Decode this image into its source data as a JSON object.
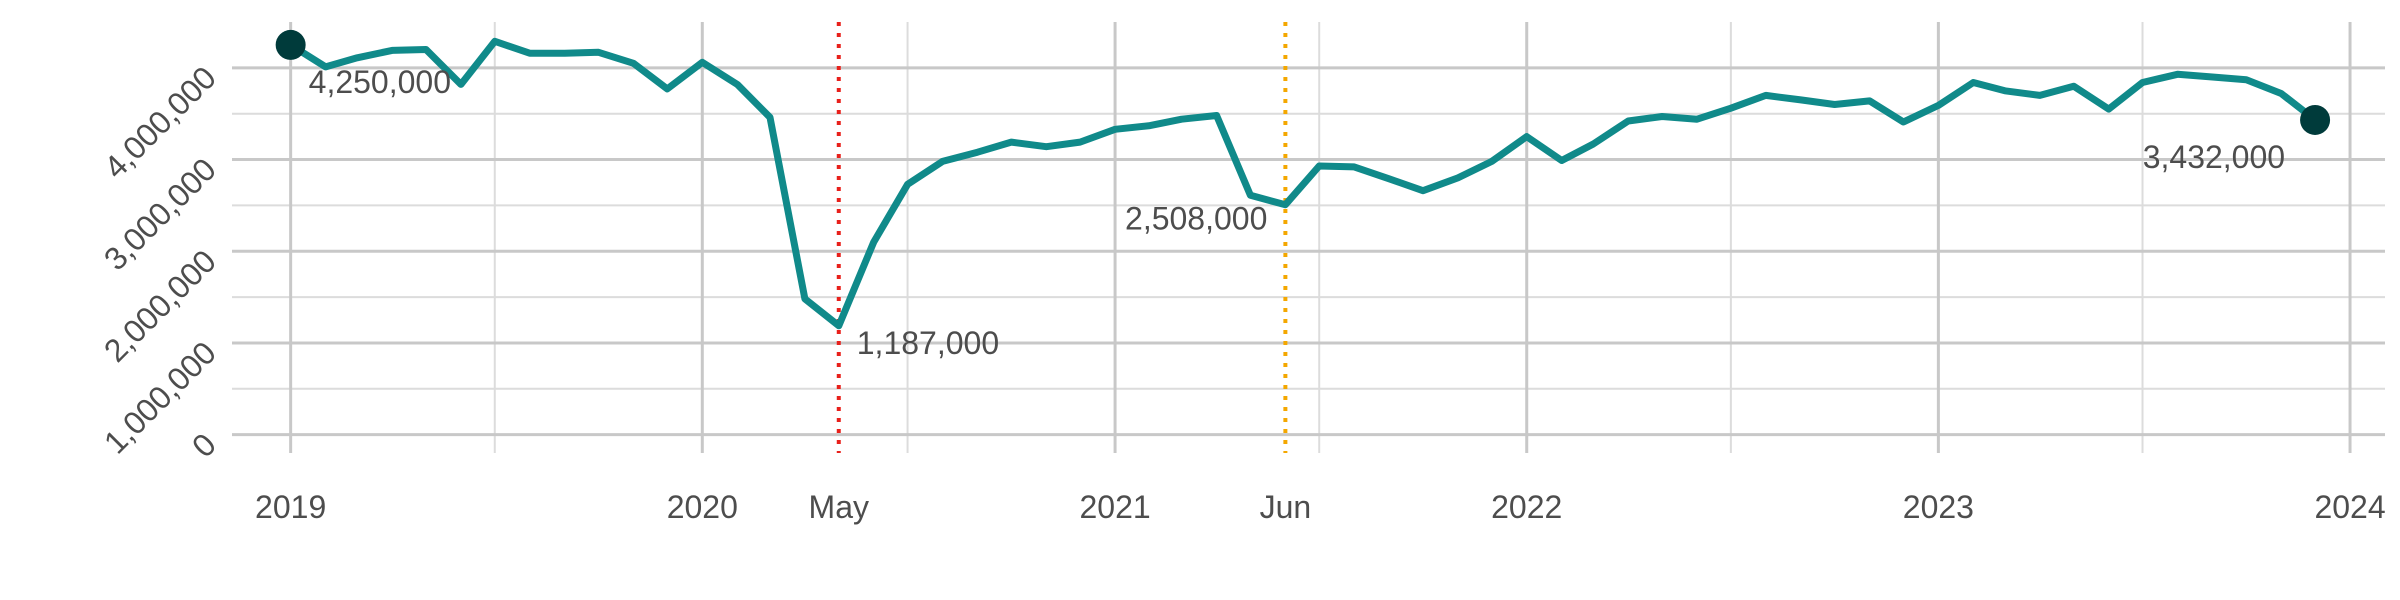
{
  "chart_data": {
    "type": "line",
    "title": "",
    "xlabel": "",
    "ylabel": "",
    "xlim": [
      "2018-11-10",
      "2024-02-01"
    ],
    "ylim": [
      -200000,
      4500000
    ],
    "grid": true,
    "colors": {
      "line": "#108a8a",
      "endpoint": "#003b3b",
      "vline_covid": "#e8201b",
      "vline_other": "#f4a700",
      "text": "#4d4d4d",
      "grid": "#c8c8c8"
    },
    "y_ticks": [
      {
        "value": 0,
        "label": "0"
      },
      {
        "value": 1000000,
        "label": "1,000,000"
      },
      {
        "value": 2000000,
        "label": "2,000,000"
      },
      {
        "value": 3000000,
        "label": "3,000,000"
      },
      {
        "value": 4000000,
        "label": "4,000,000"
      }
    ],
    "y_minor": [
      500000,
      1500000,
      2500000,
      3500000,
      4000000
    ],
    "x_ticks": [
      {
        "value": "2019-01-01",
        "label": "2019"
      },
      {
        "value": "2020-01-01",
        "label": "2020"
      },
      {
        "value": "2021-01-01",
        "label": "2021"
      },
      {
        "value": "2022-01-01",
        "label": "2022"
      },
      {
        "value": "2023-01-01",
        "label": "2023"
      },
      {
        "value": "2024-01-01",
        "label": "2024"
      }
    ],
    "x_minor": [
      "2019-07-01",
      "2020-07-01",
      "2021-07-01",
      "2022-07-01",
      "2023-07-01"
    ],
    "vlines": [
      {
        "x": "2020-05-01",
        "label": "May",
        "style": "covid"
      },
      {
        "x": "2021-06-01",
        "label": "Jun",
        "style": "other"
      }
    ],
    "series": [
      {
        "x": [
          "2019-01",
          "2019-02",
          "2019-03",
          "2019-04",
          "2019-05",
          "2019-06",
          "2019-07",
          "2019-08",
          "2019-09",
          "2019-10",
          "2019-11",
          "2019-12",
          "2020-01",
          "2020-02",
          "2020-03",
          "2020-04",
          "2020-05",
          "2020-06",
          "2020-07",
          "2020-08",
          "2020-09",
          "2020-10",
          "2020-11",
          "2020-12",
          "2021-01",
          "2021-02",
          "2021-03",
          "2021-04",
          "2021-05",
          "2021-06",
          "2021-07",
          "2021-08",
          "2021-09",
          "2021-10",
          "2021-11",
          "2021-12",
          "2022-01",
          "2022-02",
          "2022-03",
          "2022-04",
          "2022-05",
          "2022-06",
          "2022-07",
          "2022-08",
          "2022-09",
          "2022-10",
          "2022-11",
          "2022-12",
          "2023-01",
          "2023-02",
          "2023-03",
          "2023-04",
          "2023-05",
          "2023-06",
          "2023-07",
          "2023-08",
          "2023-09",
          "2023-10",
          "2023-11",
          "2023-12"
        ],
        "values": [
          4250000,
          4010000,
          4110000,
          4190000,
          4200000,
          3820000,
          4290000,
          4160000,
          4160000,
          4170000,
          4050000,
          3770000,
          4060000,
          3820000,
          3460000,
          1480000,
          1187000,
          2100000,
          2730000,
          2980000,
          3080000,
          3190000,
          3140000,
          3190000,
          3330000,
          3370000,
          3440000,
          3480000,
          2610000,
          2508000,
          2930000,
          2920000,
          2790000,
          2660000,
          2800000,
          2980000,
          3250000,
          2990000,
          3170000,
          3420000,
          3470000,
          3440000,
          3560000,
          3700000,
          3650000,
          3600000,
          3640000,
          3410000,
          3590000,
          3840000,
          3750000,
          3700000,
          3800000,
          3550000,
          3840000,
          3930000,
          3900000,
          3870000,
          3720000,
          3432000
        ]
      }
    ],
    "annotations": [
      {
        "x": "2019-01",
        "value": 4250000,
        "label": "4,250,000",
        "marker": true,
        "anchor": "below-right"
      },
      {
        "x": "2020-05",
        "value": 1187000,
        "label": "1,187,000",
        "marker": false,
        "anchor": "right"
      },
      {
        "x": "2021-06",
        "value": 2508000,
        "label": "2,508,000",
        "marker": false,
        "anchor": "left"
      },
      {
        "x": "2023-12",
        "value": 3432000,
        "label": "3,432,000",
        "marker": true,
        "anchor": "below-left"
      }
    ]
  }
}
